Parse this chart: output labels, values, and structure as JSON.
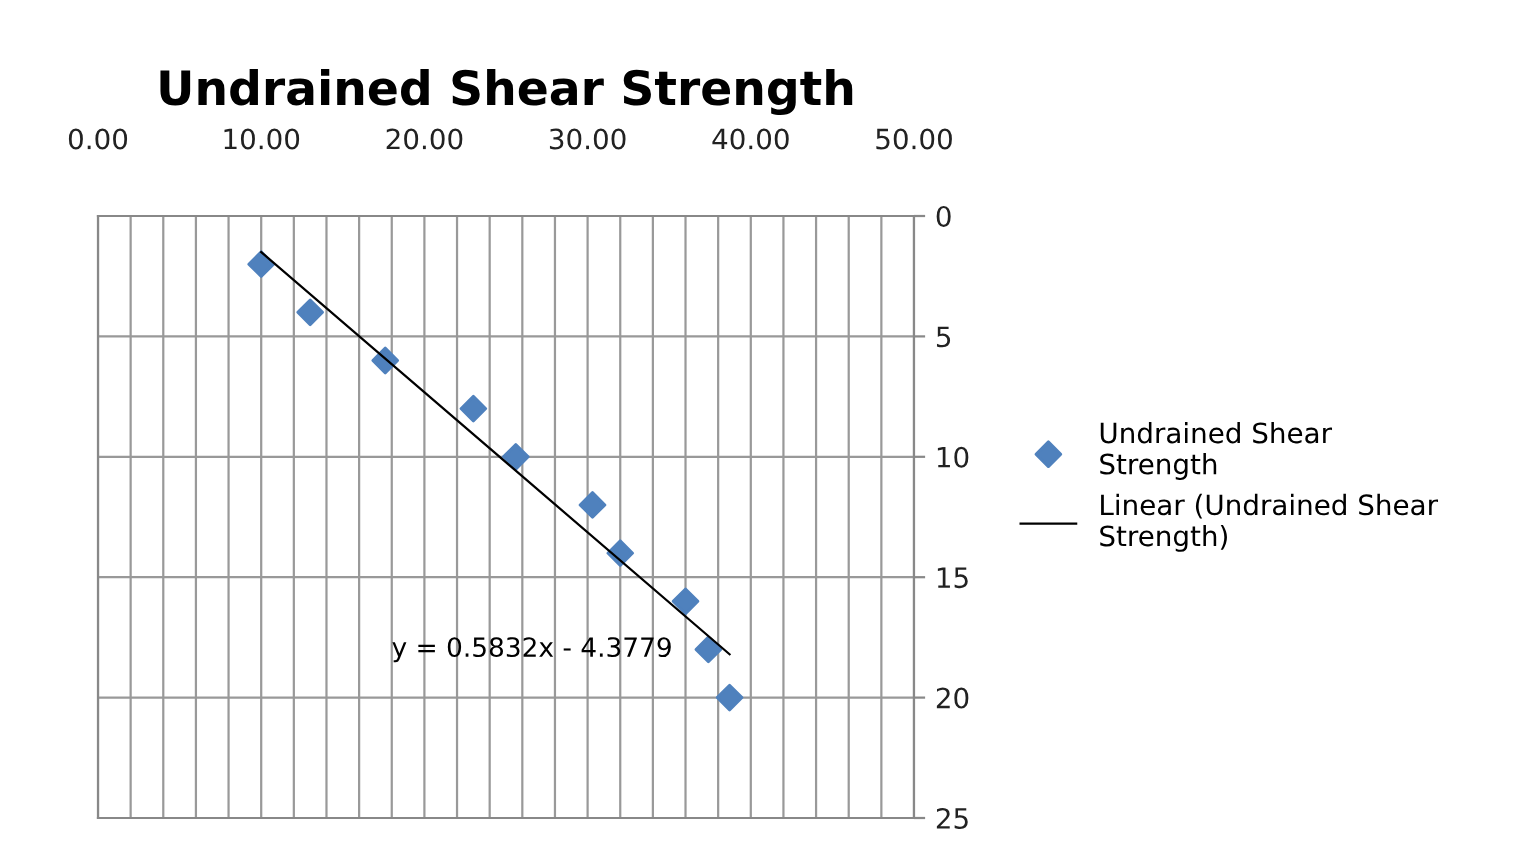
{
  "chart_data": {
    "type": "scatter",
    "title": "Undrained Shear Strength",
    "series": [
      {
        "name": "Undrained Shear Strength",
        "color": "#4f81bd",
        "marker": "diamond",
        "x": [
          10,
          13,
          17.6,
          23,
          25.6,
          30.3,
          32,
          36,
          37.4,
          38.7
        ],
        "values": [
          2,
          4,
          6,
          8,
          10,
          12,
          14,
          16,
          18,
          20
        ]
      },
      {
        "name": "Linear (Undrained Shear Strength)",
        "type": "line",
        "color": "#000000",
        "marker": "none",
        "line_style": "solid",
        "x": [
          10,
          38.7
        ],
        "values": [
          1.5,
          18.2
        ]
      }
    ],
    "xlim": [
      0,
      50
    ],
    "xticks": [
      {
        "value": 0,
        "label": "0.00"
      },
      {
        "value": 2,
        "label": null
      },
      {
        "value": 4,
        "label": null
      },
      {
        "value": 6,
        "label": null
      },
      {
        "value": 8,
        "label": null
      },
      {
        "value": 10,
        "label": "10.00"
      },
      {
        "value": 12,
        "label": null
      },
      {
        "value": 14,
        "label": null
      },
      {
        "value": 16,
        "label": null
      },
      {
        "value": 18,
        "label": null
      },
      {
        "value": 20,
        "label": "20.00"
      },
      {
        "value": 22,
        "label": null
      },
      {
        "value": 24,
        "label": null
      },
      {
        "value": 26,
        "label": null
      },
      {
        "value": 28,
        "label": null
      },
      {
        "value": 30,
        "label": "30.00"
      },
      {
        "value": 32,
        "label": null
      },
      {
        "value": 34,
        "label": null
      },
      {
        "value": 36,
        "label": null
      },
      {
        "value": 38,
        "label": null
      },
      {
        "value": 40,
        "label": "40.00"
      },
      {
        "value": 42,
        "label": null
      },
      {
        "value": 44,
        "label": null
      },
      {
        "value": 46,
        "label": null
      },
      {
        "value": 48,
        "label": null
      },
      {
        "value": 50,
        "label": "50.00"
      }
    ],
    "ylim": [
      25,
      0
    ],
    "yticks": [
      0,
      5,
      10,
      15,
      20,
      25
    ],
    "grid": true,
    "legend": "right",
    "annotations": [
      "y = 0.5832x - 4.3779"
    ]
  }
}
